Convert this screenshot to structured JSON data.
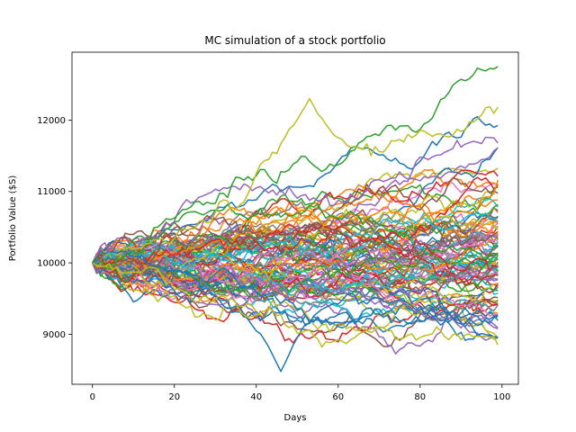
{
  "chart_data": {
    "type": "line",
    "title": "MC simulation of a stock portfolio",
    "xlabel": "Days",
    "ylabel": "Portfolio Value ($S)",
    "xlim": [
      -5,
      104
    ],
    "ylim": [
      8300,
      12950
    ],
    "xticks": [
      0,
      20,
      40,
      60,
      80,
      100
    ],
    "xtick_labels": [
      "0",
      "20",
      "40",
      "60",
      "80",
      "100"
    ],
    "yticks": [
      9000,
      10000,
      11000,
      12000
    ],
    "ytick_labels": [
      "9000",
      "10000",
      "11000",
      "12000"
    ],
    "grid": false,
    "legend": "none",
    "simulation": {
      "n_paths": 100,
      "n_days": 100,
      "start_value": 10000,
      "x_range": [
        0,
        99
      ],
      "final_value_range": [
        8700,
        12750
      ],
      "overall_value_range": [
        8480,
        12750
      ]
    },
    "highlighted_series": [
      {
        "color": "#2ca02c",
        "final_value": 12750,
        "note": "highest path"
      },
      {
        "color": "#bcbd22",
        "final_value": 12180,
        "peak": {
          "x": 53,
          "y": 12300
        }
      },
      {
        "color": "#1f77b4",
        "min_value": 8480,
        "min_day": 46
      },
      {
        "color": "#bcbd22",
        "final_value": 8850
      }
    ],
    "palette": [
      "#1f77b4",
      "#ff7f0e",
      "#2ca02c",
      "#d62728",
      "#9467bd",
      "#8c564b",
      "#e377c2",
      "#7f7f7f",
      "#bcbd22",
      "#17becf"
    ]
  }
}
